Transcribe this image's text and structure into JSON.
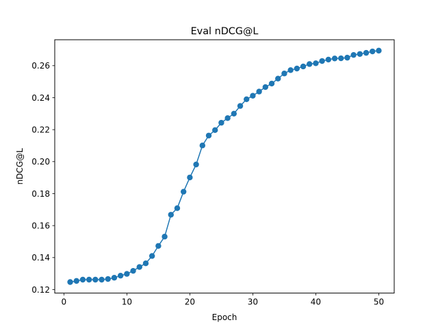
{
  "chart_data": {
    "type": "line",
    "title": "Eval nDCG@L",
    "xlabel": "Epoch",
    "ylabel": "nDCG@L",
    "xlim": [
      -1.45,
      52.45
    ],
    "ylim": [
      0.1178,
      0.2762
    ],
    "xticks": [
      0,
      10,
      20,
      30,
      40,
      50
    ],
    "yticks": [
      0.12,
      0.14,
      0.16,
      0.18,
      0.2,
      0.22,
      0.24,
      0.26
    ],
    "ytick_labels": [
      "0.12",
      "0.14",
      "0.16",
      "0.18",
      "0.20",
      "0.22",
      "0.24",
      "0.26"
    ],
    "grid": false,
    "marker": "circle",
    "color": "#1f77b4",
    "series": [
      {
        "x": [
          1,
          2,
          3,
          4,
          5,
          6,
          7,
          8,
          9,
          10,
          11,
          12,
          13,
          14,
          15,
          16,
          17,
          18,
          19,
          20,
          21,
          22,
          23,
          24,
          25,
          26,
          27,
          28,
          29,
          30,
          31,
          32,
          33,
          34,
          35,
          36,
          37,
          38,
          39,
          40,
          41,
          42,
          43,
          44,
          45,
          46,
          47,
          48,
          49,
          50
        ],
        "values": [
          0.1247,
          0.1254,
          0.1262,
          0.1262,
          0.1262,
          0.1262,
          0.1266,
          0.1274,
          0.1287,
          0.1298,
          0.1317,
          0.1341,
          0.1364,
          0.141,
          0.1473,
          0.1531,
          0.1668,
          0.1709,
          0.1812,
          0.1901,
          0.1982,
          0.2101,
          0.2163,
          0.2197,
          0.2243,
          0.2272,
          0.23,
          0.2348,
          0.239,
          0.2412,
          0.2438,
          0.2466,
          0.2488,
          0.2519,
          0.2551,
          0.2572,
          0.2582,
          0.2595,
          0.261,
          0.2615,
          0.2629,
          0.2638,
          0.2645,
          0.2646,
          0.265,
          0.2667,
          0.2673,
          0.268,
          0.2689,
          0.2694
        ]
      }
    ]
  }
}
